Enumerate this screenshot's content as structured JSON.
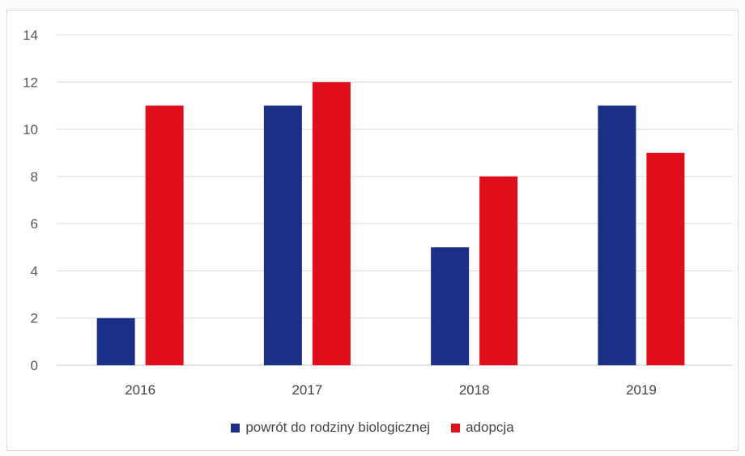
{
  "chart_data": {
    "type": "bar",
    "categories": [
      "2016",
      "2017",
      "2018",
      "2019"
    ],
    "series": [
      {
        "name": "powrót do rodziny biologicznej",
        "color": "#1b2f87",
        "values": [
          2,
          11,
          5,
          11
        ]
      },
      {
        "name": "adopcja",
        "color": "#e00d1a",
        "values": [
          11,
          12,
          8,
          9
        ]
      }
    ],
    "ylim": [
      0,
      14
    ],
    "yticks": [
      0,
      2,
      4,
      6,
      8,
      10,
      12,
      14
    ],
    "grid": true,
    "legend_position": "bottom"
  }
}
